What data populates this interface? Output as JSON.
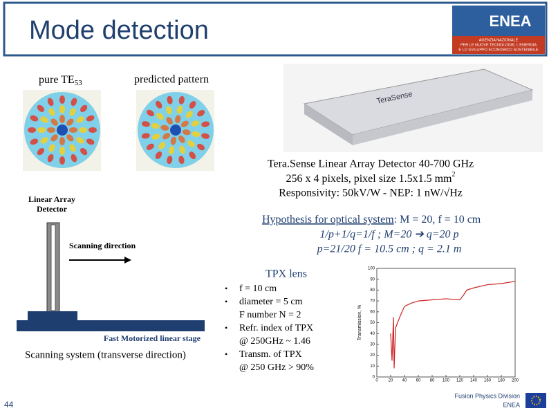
{
  "header": {
    "title": "Mode detection",
    "logo": {
      "name": "ENEA",
      "lines": [
        "AGENZIA NAZIONALE",
        "PER LE NUOVE TECNOLOGIE, L'ENERGIA",
        "E LO SVILUPPO ECONOMICO SOSTENIBILE"
      ]
    }
  },
  "patterns": {
    "pure": {
      "label": "pure TE",
      "sub": "53"
    },
    "predicted": "predicted pattern"
  },
  "device_brand": "TeraSense",
  "detector": {
    "line1": "Tera.Sense Linear Array Detector 40-700 GHz",
    "line2": "256 x 4 pixels, pixel size 1.5x1.5 mm",
    "line2_sup": "2",
    "line3": "Responsivity: 50kV/W - NEP: 1 nW/√Hz"
  },
  "scanner": {
    "detector_label": [
      "Linear Array",
      "Detector"
    ],
    "direction": "Scanning direction",
    "stage": "Fast Motorized linear stage",
    "caption": "Scanning system (transverse direction)"
  },
  "hypothesis": {
    "head": "Hypothesis for optical system",
    "rest": ": M = 20, f = 10 cm",
    "eq1": "1/p+1/q=1/f ; M=20 ➔ q=20 p",
    "eq2": "p=21/20 f = 10.5 cm ; q = 2.1 m"
  },
  "lens": {
    "title": "TPX lens",
    "bullets": [
      [
        "f = 10 cm"
      ],
      [
        "diameter = 5 cm",
        "F number N = 2"
      ],
      [
        "Refr. index of TPX",
        "@ 250GHz ~ 1.46"
      ],
      [
        "Transm. of TPX",
        "@ 250 GHz > 90%"
      ]
    ]
  },
  "transmission_plot": {
    "ylabel": "Transmission, %",
    "xlim": [
      0,
      200
    ],
    "ylim": [
      0,
      100
    ],
    "xticks": [
      0,
      20,
      40,
      60,
      80,
      100,
      120,
      140,
      160,
      180,
      200
    ],
    "yticks": [
      0,
      10,
      20,
      30,
      40,
      50,
      60,
      70,
      80,
      90,
      100
    ],
    "color": "#cc2222",
    "x": [
      20,
      22,
      24,
      25,
      27,
      30,
      35,
      40,
      50,
      60,
      80,
      100,
      120,
      125,
      130,
      140,
      160,
      180,
      200
    ],
    "values": [
      40,
      15,
      55,
      8,
      45,
      50,
      58,
      65,
      68,
      70,
      71,
      72,
      71,
      75,
      80,
      82,
      85,
      86,
      88
    ]
  },
  "footer": {
    "division": "Fusion Physics Division",
    "org": "ENEA",
    "page": "44"
  }
}
